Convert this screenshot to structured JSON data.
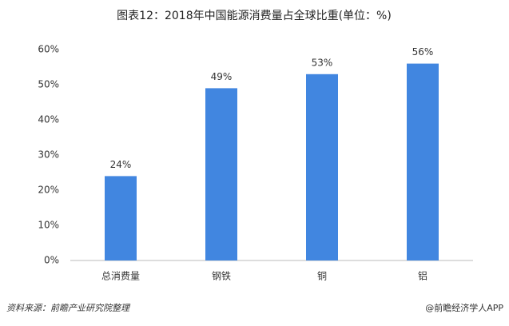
{
  "chart_data": {
    "type": "bar",
    "title": "图表12：2018年中国能源消费量占全球比重(单位：%)",
    "categories": [
      "总消费量",
      "钢铁",
      "铜",
      "铝"
    ],
    "values": [
      24,
      49,
      53,
      56
    ],
    "value_labels": [
      "24%",
      "49%",
      "53%",
      "56%"
    ],
    "color": "#4186e0",
    "ylim": [
      0,
      60
    ],
    "yticks": [
      {
        "value": 0,
        "label": "0%"
      },
      {
        "value": 10,
        "label": "10%"
      },
      {
        "value": 20,
        "label": "20%"
      },
      {
        "value": 30,
        "label": "30%"
      },
      {
        "value": 40,
        "label": "40%"
      },
      {
        "value": 50,
        "label": "50%"
      },
      {
        "value": 60,
        "label": "60%"
      }
    ],
    "grid": false,
    "source": "资料来源：前瞻产业研究院整理",
    "credit": "@前瞻经济学人APP"
  }
}
